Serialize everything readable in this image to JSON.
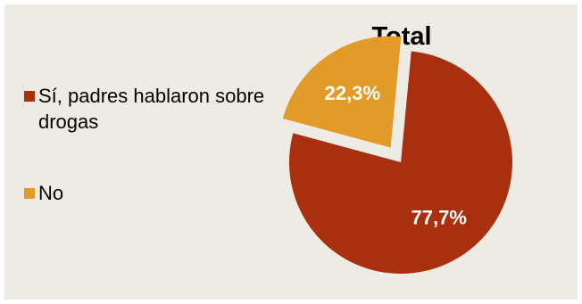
{
  "chart_data": {
    "type": "pie",
    "title": "Total",
    "slices": [
      {
        "label": "Sí, padres hablaron sobre drogas",
        "value": 77.7,
        "value_label": "77,7%",
        "color": "#a8300e"
      },
      {
        "label": "No",
        "value": 22.3,
        "value_label": "22,3%",
        "color": "#e29a28",
        "exploded": true
      }
    ],
    "legend_position": "left"
  }
}
